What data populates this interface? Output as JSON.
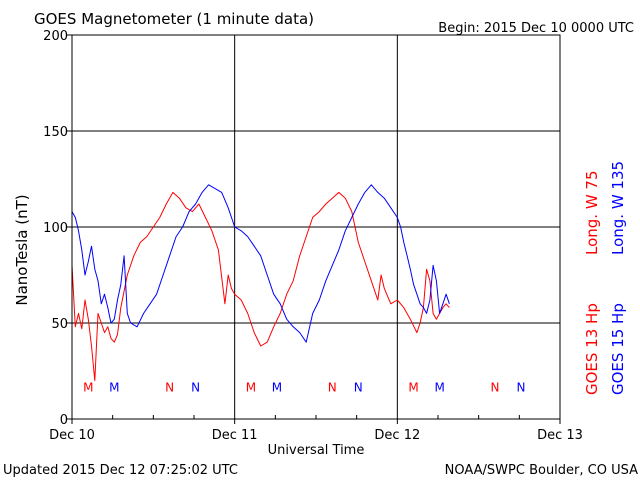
{
  "chart_data": {
    "type": "line",
    "title": "GOES Magnetometer (1 minute data)",
    "begin_label": "Begin:  2015 Dec 10 0000 UTC",
    "xlabel": "Universal Time",
    "ylabel": "NanoTesla (nT)",
    "xlim": [
      0,
      3
    ],
    "ylim": [
      0,
      200
    ],
    "x_ticks": [
      {
        "x": 0,
        "label": "Dec 10"
      },
      {
        "x": 1,
        "label": "Dec 11"
      },
      {
        "x": 2,
        "label": "Dec 12"
      },
      {
        "x": 3,
        "label": "Dec 13"
      }
    ],
    "y_ticks": [
      {
        "y": 0,
        "label": "0"
      },
      {
        "y": 50,
        "label": "50"
      },
      {
        "y": 100,
        "label": "100"
      },
      {
        "y": 150,
        "label": "150"
      },
      {
        "y": 200,
        "label": "200"
      }
    ],
    "grid": true,
    "legend_placement": "right-vertical",
    "series": [
      {
        "name": "GOES 13 Hp",
        "longitude_label": "Long. W 75",
        "color": "#ff0000",
        "x": [
          0.0,
          0.02,
          0.04,
          0.06,
          0.08,
          0.1,
          0.12,
          0.14,
          0.16,
          0.18,
          0.2,
          0.22,
          0.24,
          0.26,
          0.28,
          0.3,
          0.34,
          0.38,
          0.42,
          0.46,
          0.5,
          0.54,
          0.58,
          0.62,
          0.66,
          0.7,
          0.74,
          0.78,
          0.82,
          0.86,
          0.9,
          0.94,
          0.96,
          0.98,
          1.0,
          1.04,
          1.08,
          1.12,
          1.16,
          1.2,
          1.24,
          1.28,
          1.32,
          1.36,
          1.4,
          1.44,
          1.48,
          1.52,
          1.56,
          1.6,
          1.64,
          1.68,
          1.72,
          1.76,
          1.8,
          1.84,
          1.88,
          1.9,
          1.92,
          1.96,
          2.0,
          2.04,
          2.08,
          2.12,
          2.14,
          2.16,
          2.18,
          2.2,
          2.22,
          2.24,
          2.26,
          2.28,
          2.3,
          2.32
        ],
        "values": [
          80,
          48,
          55,
          47,
          62,
          52,
          38,
          20,
          55,
          50,
          45,
          48,
          42,
          40,
          44,
          58,
          75,
          85,
          92,
          95,
          100,
          105,
          112,
          118,
          115,
          110,
          108,
          112,
          105,
          98,
          88,
          60,
          75,
          68,
          65,
          62,
          55,
          45,
          38,
          40,
          48,
          55,
          65,
          72,
          85,
          95,
          105,
          108,
          112,
          115,
          118,
          115,
          108,
          92,
          82,
          72,
          62,
          75,
          68,
          60,
          62,
          58,
          52,
          45,
          50,
          58,
          78,
          72,
          55,
          52,
          55,
          58,
          60,
          58
        ]
      },
      {
        "name": "GOES 15 Hp",
        "longitude_label": "Long. W 135",
        "color": "#0000ff",
        "x": [
          0.0,
          0.02,
          0.04,
          0.06,
          0.08,
          0.1,
          0.12,
          0.14,
          0.16,
          0.18,
          0.2,
          0.22,
          0.24,
          0.26,
          0.28,
          0.3,
          0.32,
          0.34,
          0.36,
          0.4,
          0.44,
          0.48,
          0.52,
          0.56,
          0.6,
          0.64,
          0.68,
          0.72,
          0.76,
          0.8,
          0.84,
          0.88,
          0.92,
          0.96,
          1.0,
          1.04,
          1.08,
          1.12,
          1.16,
          1.2,
          1.24,
          1.28,
          1.32,
          1.36,
          1.4,
          1.44,
          1.48,
          1.52,
          1.56,
          1.6,
          1.64,
          1.68,
          1.72,
          1.76,
          1.8,
          1.84,
          1.88,
          1.92,
          1.96,
          2.0,
          2.02,
          2.04,
          2.06,
          2.08,
          2.1,
          2.12,
          2.14,
          2.16,
          2.18,
          2.2,
          2.22,
          2.24,
          2.26,
          2.28,
          2.3,
          2.32
        ],
        "values": [
          108,
          105,
          98,
          88,
          75,
          82,
          90,
          78,
          72,
          60,
          65,
          58,
          50,
          52,
          62,
          70,
          85,
          55,
          50,
          48,
          55,
          60,
          65,
          75,
          85,
          95,
          100,
          108,
          112,
          118,
          122,
          120,
          118,
          110,
          100,
          98,
          95,
          90,
          85,
          75,
          65,
          60,
          52,
          48,
          45,
          40,
          55,
          62,
          72,
          80,
          88,
          98,
          105,
          112,
          118,
          122,
          118,
          115,
          110,
          105,
          100,
          92,
          85,
          78,
          70,
          65,
          60,
          58,
          55,
          62,
          80,
          72,
          55,
          60,
          65,
          60
        ]
      }
    ],
    "event_markers": [
      {
        "x": 0.1,
        "label": "M",
        "color": "#ff0000"
      },
      {
        "x": 0.26,
        "label": "M",
        "color": "#0000ff"
      },
      {
        "x": 0.6,
        "label": "N",
        "color": "#ff0000"
      },
      {
        "x": 0.76,
        "label": "N",
        "color": "#0000ff"
      },
      {
        "x": 1.1,
        "label": "M",
        "color": "#ff0000"
      },
      {
        "x": 1.26,
        "label": "M",
        "color": "#0000ff"
      },
      {
        "x": 1.6,
        "label": "N",
        "color": "#ff0000"
      },
      {
        "x": 1.76,
        "label": "N",
        "color": "#0000ff"
      },
      {
        "x": 2.1,
        "label": "M",
        "color": "#ff0000"
      },
      {
        "x": 2.26,
        "label": "M",
        "color": "#0000ff"
      },
      {
        "x": 2.6,
        "label": "N",
        "color": "#ff0000"
      },
      {
        "x": 2.76,
        "label": "N",
        "color": "#0000ff"
      }
    ],
    "event_marker_y": 17
  },
  "footer": {
    "updated": "Updated 2015 Dec 12 07:25:02 UTC",
    "credit": "NOAA/SWPC Boulder, CO USA"
  }
}
